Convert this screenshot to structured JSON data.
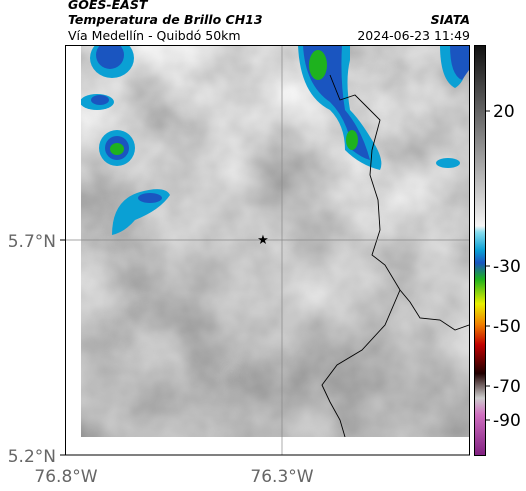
{
  "header": {
    "product": "GOES-EAST",
    "title": "Temperatura de Brillo CH13",
    "subtitle": "Vía Medellín - Quibdó 50km",
    "source": "SIATA",
    "timestamp": "2024-06-23 11:49"
  },
  "map": {
    "lat_ticks": [
      "5.7°N",
      "5.2°N"
    ],
    "lon_ticks": [
      "76.8°W",
      "76.3°W"
    ]
  },
  "colorbar": {
    "ticks": [
      20,
      -30,
      -50,
      -70,
      -90
    ]
  }
}
